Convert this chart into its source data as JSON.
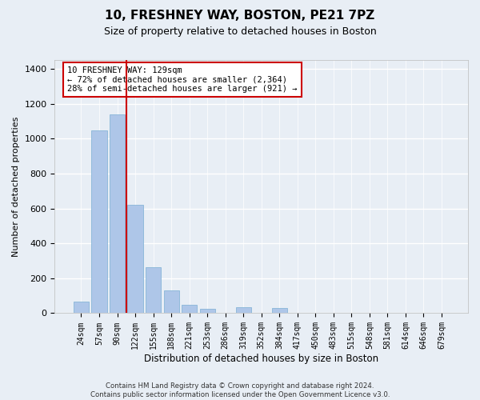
{
  "title": "10, FRESHNEY WAY, BOSTON, PE21 7PZ",
  "subtitle": "Size of property relative to detached houses in Boston",
  "xlabel": "Distribution of detached houses by size in Boston",
  "ylabel": "Number of detached properties",
  "categories": [
    "24sqm",
    "57sqm",
    "90sqm",
    "122sqm",
    "155sqm",
    "188sqm",
    "221sqm",
    "253sqm",
    "286sqm",
    "319sqm",
    "352sqm",
    "384sqm",
    "417sqm",
    "450sqm",
    "483sqm",
    "515sqm",
    "548sqm",
    "581sqm",
    "614sqm",
    "646sqm",
    "679sqm"
  ],
  "values": [
    65,
    1045,
    1140,
    620,
    265,
    130,
    50,
    25,
    0,
    35,
    0,
    30,
    0,
    0,
    0,
    0,
    0,
    0,
    0,
    0,
    0
  ],
  "bar_color": "#aec6e8",
  "bar_edge_color": "#7aafd4",
  "vline_index": 2.5,
  "vline_color": "#cc0000",
  "annotation_text": "10 FRESHNEY WAY: 129sqm\n← 72% of detached houses are smaller (2,364)\n28% of semi-detached houses are larger (921) →",
  "annotation_box_color": "#ffffff",
  "annotation_box_edge_color": "#cc0000",
  "bg_color": "#e8eef5",
  "plot_bg_color": "#e8eef5",
  "grid_color": "#ffffff",
  "ylim": [
    0,
    1450
  ],
  "yticks": [
    0,
    200,
    400,
    600,
    800,
    1000,
    1200,
    1400
  ],
  "footer": "Contains HM Land Registry data © Crown copyright and database right 2024.\nContains public sector information licensed under the Open Government Licence v3.0.",
  "title_fontsize": 11,
  "subtitle_fontsize": 9,
  "xlabel_fontsize": 8.5,
  "ylabel_fontsize": 8
}
